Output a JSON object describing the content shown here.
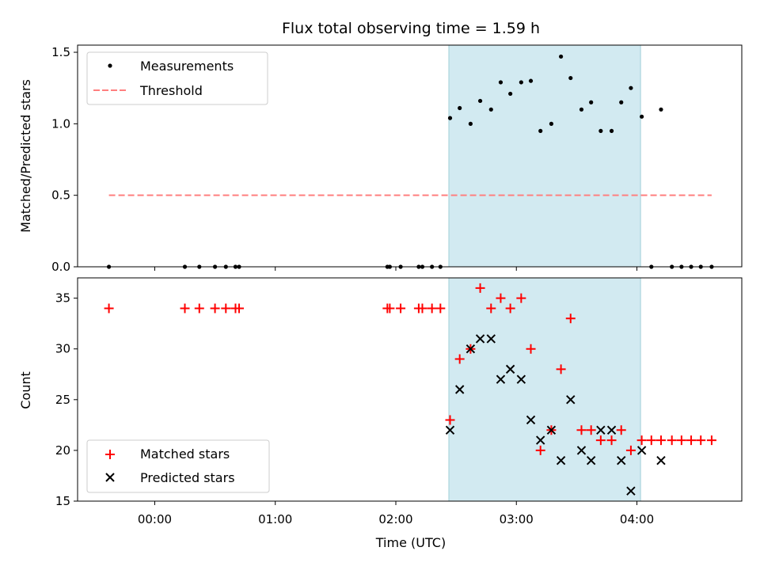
{
  "chart_data": {
    "title": "Flux total observing time = 1.59 h",
    "xlabel": "Time (UTC)",
    "x_tick_labels": [
      "00:00",
      "01:00",
      "02:00",
      "03:00",
      "04:00"
    ],
    "x_ticks_hours": [
      0,
      1,
      2,
      3,
      4
    ],
    "x_range_hours": [
      -0.64,
      4.87
    ],
    "shaded_interval_hours": [
      2.44,
      4.03
    ],
    "shade_color": "#add8e6",
    "panels": [
      {
        "type": "scatter",
        "ylabel": "Matched/Predicted stars",
        "ylim": [
          0,
          1.55
        ],
        "y_tick_labels": [
          "0.0",
          "0.5",
          "1.0",
          "1.5"
        ],
        "y_ticks": [
          0,
          0.5,
          1.0,
          1.5
        ],
        "legend_position": "upper-left",
        "series": [
          {
            "name": "Measurements",
            "marker": "dot",
            "color": "#000000",
            "points": [
              [
                -0.38,
                0
              ],
              [
                0.25,
                0
              ],
              [
                0.37,
                0
              ],
              [
                0.5,
                0
              ],
              [
                0.59,
                0
              ],
              [
                0.67,
                0
              ],
              [
                0.7,
                0
              ],
              [
                1.93,
                0
              ],
              [
                1.95,
                0
              ],
              [
                2.04,
                0
              ],
              [
                2.19,
                0
              ],
              [
                2.22,
                0
              ],
              [
                2.3,
                0
              ],
              [
                2.37,
                0
              ],
              [
                2.45,
                1.04
              ],
              [
                2.53,
                1.11
              ],
              [
                2.62,
                1.0
              ],
              [
                2.7,
                1.16
              ],
              [
                2.79,
                1.1
              ],
              [
                2.87,
                1.29
              ],
              [
                2.95,
                1.21
              ],
              [
                3.04,
                1.29
              ],
              [
                3.12,
                1.3
              ],
              [
                3.2,
                0.95
              ],
              [
                3.29,
                1.0
              ],
              [
                3.37,
                1.47
              ],
              [
                3.45,
                1.32
              ],
              [
                3.54,
                1.1
              ],
              [
                3.62,
                1.15
              ],
              [
                3.7,
                0.95
              ],
              [
                3.79,
                0.95
              ],
              [
                3.87,
                1.15
              ],
              [
                3.95,
                1.25
              ],
              [
                4.04,
                1.05
              ],
              [
                4.12,
                0
              ],
              [
                4.2,
                1.1
              ],
              [
                4.29,
                0
              ],
              [
                4.37,
                0
              ],
              [
                4.45,
                0
              ],
              [
                4.53,
                0
              ],
              [
                4.62,
                0
              ]
            ]
          },
          {
            "name": "Threshold",
            "marker": "dashed-line",
            "color": "#ff7f7f",
            "y": 0.5,
            "x_span_hours": [
              -0.38,
              4.62
            ]
          }
        ]
      },
      {
        "type": "scatter",
        "ylabel": "Count",
        "ylim": [
          15,
          37
        ],
        "y_tick_labels": [
          "15",
          "20",
          "25",
          "30",
          "35"
        ],
        "y_ticks": [
          15,
          20,
          25,
          30,
          35
        ],
        "legend_position": "lower-left",
        "series": [
          {
            "name": "Matched stars",
            "marker": "plus",
            "color": "#ff0000",
            "points": [
              [
                -0.38,
                34
              ],
              [
                0.25,
                34
              ],
              [
                0.37,
                34
              ],
              [
                0.5,
                34
              ],
              [
                0.59,
                34
              ],
              [
                0.67,
                34
              ],
              [
                0.7,
                34
              ],
              [
                1.93,
                34
              ],
              [
                1.95,
                34
              ],
              [
                2.04,
                34
              ],
              [
                2.19,
                34
              ],
              [
                2.22,
                34
              ],
              [
                2.3,
                34
              ],
              [
                2.37,
                34
              ],
              [
                2.45,
                23
              ],
              [
                2.53,
                29
              ],
              [
                2.62,
                30
              ],
              [
                2.7,
                36
              ],
              [
                2.79,
                34
              ],
              [
                2.87,
                35
              ],
              [
                2.95,
                34
              ],
              [
                3.04,
                35
              ],
              [
                3.12,
                30
              ],
              [
                3.2,
                20
              ],
              [
                3.29,
                22
              ],
              [
                3.37,
                28
              ],
              [
                3.45,
                33
              ],
              [
                3.54,
                22
              ],
              [
                3.62,
                22
              ],
              [
                3.7,
                21
              ],
              [
                3.79,
                21
              ],
              [
                3.87,
                22
              ],
              [
                3.95,
                20
              ],
              [
                4.04,
                21
              ],
              [
                4.12,
                21
              ],
              [
                4.2,
                21
              ],
              [
                4.29,
                21
              ],
              [
                4.37,
                21
              ],
              [
                4.45,
                21
              ],
              [
                4.53,
                21
              ],
              [
                4.62,
                21
              ]
            ]
          },
          {
            "name": "Predicted stars",
            "marker": "x",
            "color": "#000000",
            "points": [
              [
                2.45,
                22
              ],
              [
                2.53,
                26
              ],
              [
                2.62,
                30
              ],
              [
                2.7,
                31
              ],
              [
                2.79,
                31
              ],
              [
                2.87,
                27
              ],
              [
                2.95,
                28
              ],
              [
                3.04,
                27
              ],
              [
                3.12,
                23
              ],
              [
                3.2,
                21
              ],
              [
                3.29,
                22
              ],
              [
                3.37,
                19
              ],
              [
                3.45,
                25
              ],
              [
                3.54,
                20
              ],
              [
                3.62,
                19
              ],
              [
                3.7,
                22
              ],
              [
                3.79,
                22
              ],
              [
                3.87,
                19
              ],
              [
                3.95,
                16
              ],
              [
                4.04,
                20
              ],
              [
                4.2,
                19
              ]
            ]
          }
        ]
      }
    ]
  }
}
